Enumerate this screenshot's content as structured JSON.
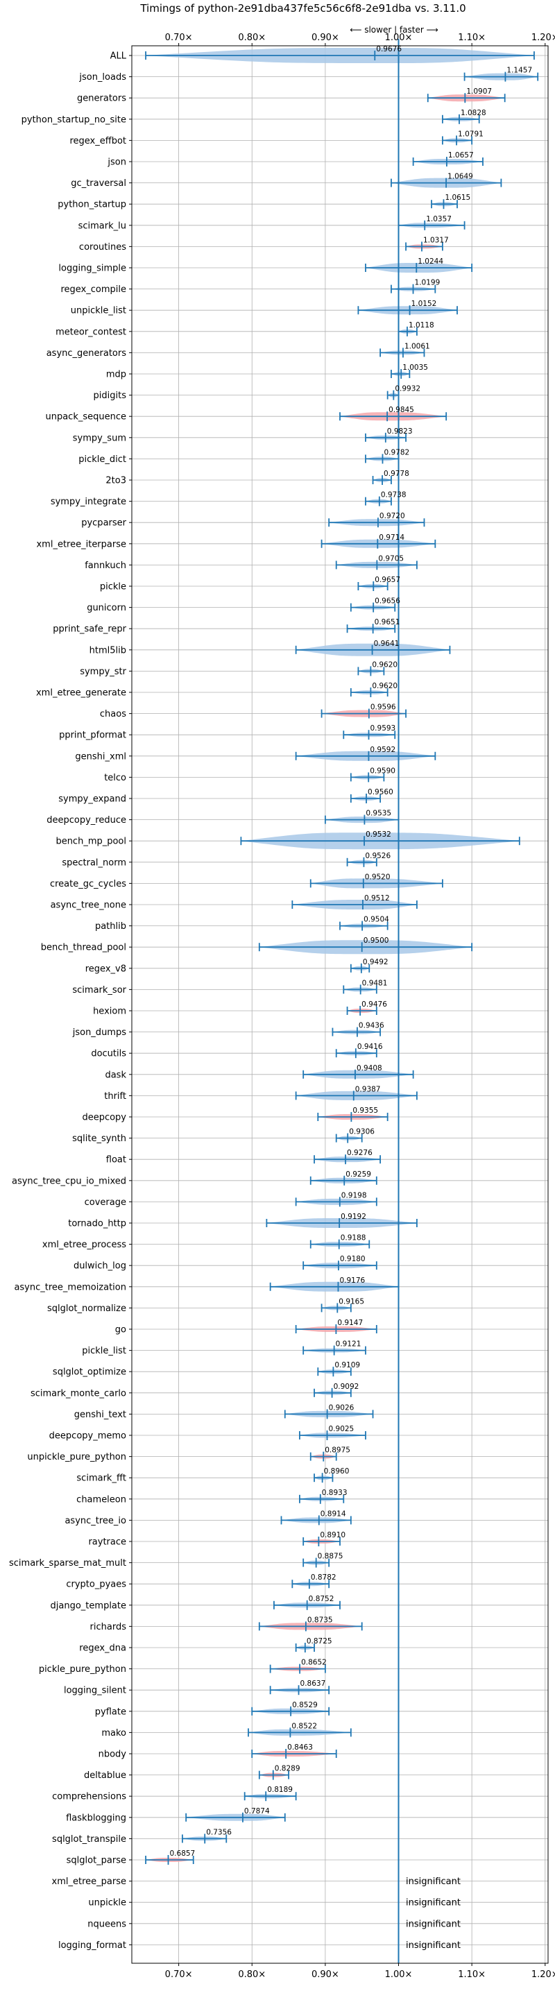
{
  "chart_data": {
    "type": "violin",
    "title": "Timings of python-2e91dba437fe5c56c6f8-2e91dba vs. 3.11.0",
    "direction_label": "⟵ slower | faster ⟶",
    "xlim": [
      0.636,
      1.204
    ],
    "x_ticks": [
      {
        "value": 0.7,
        "label": "0.70×"
      },
      {
        "value": 0.8,
        "label": "0.80×"
      },
      {
        "value": 0.9,
        "label": "0.90×"
      },
      {
        "value": 1.0,
        "label": "1.00×"
      },
      {
        "value": 1.1,
        "label": "1.10×"
      },
      {
        "value": 1.2,
        "label": "1.20×"
      }
    ],
    "grid": true,
    "colors": {
      "normal": "#a8c8e8",
      "slow": "#f4a6aa",
      "line": "#1f77b4",
      "grid": "#b0b0b0"
    },
    "insignificant_label": "insignificant",
    "benchmarks": [
      {
        "name": "ALL",
        "value": 0.9676,
        "label": "0.9676",
        "min": 0.655,
        "max": 1.185,
        "width": 0.11,
        "color": "normal"
      },
      {
        "name": "json_loads",
        "value": 1.1457,
        "label": "1.1457",
        "min": 1.09,
        "max": 1.19,
        "width": 0.05,
        "color": "normal"
      },
      {
        "name": "generators",
        "value": 1.0907,
        "label": "1.0907",
        "min": 1.04,
        "max": 1.145,
        "width": 0.05,
        "color": "slow"
      },
      {
        "name": "python_startup_no_site",
        "value": 1.0828,
        "label": "1.0828",
        "min": 1.06,
        "max": 1.11,
        "width": 0.025,
        "color": "normal"
      },
      {
        "name": "regex_effbot",
        "value": 1.0791,
        "label": "1.0791",
        "min": 1.06,
        "max": 1.1,
        "width": 0.02,
        "color": "normal"
      },
      {
        "name": "json",
        "value": 1.0657,
        "label": "1.0657",
        "min": 1.02,
        "max": 1.115,
        "width": 0.04,
        "color": "normal"
      },
      {
        "name": "gc_traversal",
        "value": 1.0649,
        "label": "1.0649",
        "min": 0.99,
        "max": 1.14,
        "width": 0.07,
        "color": "normal"
      },
      {
        "name": "python_startup",
        "value": 1.0615,
        "label": "1.0615",
        "min": 1.045,
        "max": 1.08,
        "width": 0.02,
        "color": "normal"
      },
      {
        "name": "scimark_lu",
        "value": 1.0357,
        "label": "1.0357",
        "min": 1.0,
        "max": 1.09,
        "width": 0.035,
        "color": "normal"
      },
      {
        "name": "coroutines",
        "value": 1.0317,
        "label": "1.0317",
        "min": 1.01,
        "max": 1.06,
        "width": 0.025,
        "color": "slow"
      },
      {
        "name": "logging_simple",
        "value": 1.0244,
        "label": "1.0244",
        "min": 0.955,
        "max": 1.1,
        "width": 0.07,
        "color": "normal"
      },
      {
        "name": "regex_compile",
        "value": 1.0199,
        "label": "1.0199",
        "min": 0.99,
        "max": 1.05,
        "width": 0.03,
        "color": "normal"
      },
      {
        "name": "unpickle_list",
        "value": 1.0152,
        "label": "1.0152",
        "min": 0.945,
        "max": 1.08,
        "width": 0.06,
        "color": "normal"
      },
      {
        "name": "meteor_contest",
        "value": 1.0118,
        "label": "1.0118",
        "min": 1.0,
        "max": 1.025,
        "width": 0.015,
        "color": "normal"
      },
      {
        "name": "async_generators",
        "value": 1.0061,
        "label": "1.0061",
        "min": 0.975,
        "max": 1.035,
        "width": 0.03,
        "color": "normal"
      },
      {
        "name": "mdp",
        "value": 1.0035,
        "label": "1.0035",
        "min": 0.99,
        "max": 1.015,
        "width": 0.015,
        "color": "normal"
      },
      {
        "name": "pidigits",
        "value": 0.9932,
        "label": "0.9932",
        "min": 0.985,
        "max": 1.0,
        "width": 0.012,
        "color": "normal"
      },
      {
        "name": "unpack_sequence",
        "value": 0.9845,
        "label": "0.9845",
        "min": 0.92,
        "max": 1.065,
        "width": 0.06,
        "color": "slow"
      },
      {
        "name": "sympy_sum",
        "value": 0.9823,
        "label": "0.9823",
        "min": 0.955,
        "max": 1.01,
        "width": 0.03,
        "color": "normal"
      },
      {
        "name": "pickle_dict",
        "value": 0.9782,
        "label": "0.9782",
        "min": 0.955,
        "max": 1.0,
        "width": 0.025,
        "color": "normal"
      },
      {
        "name": "2to3",
        "value": 0.9778,
        "label": "0.9778",
        "min": 0.965,
        "max": 0.99,
        "width": 0.015,
        "color": "normal"
      },
      {
        "name": "sympy_integrate",
        "value": 0.9738,
        "label": "0.9738",
        "min": 0.955,
        "max": 0.99,
        "width": 0.02,
        "color": "normal"
      },
      {
        "name": "pycparser",
        "value": 0.972,
        "label": "0.9720",
        "min": 0.905,
        "max": 1.035,
        "width": 0.05,
        "color": "normal"
      },
      {
        "name": "xml_etree_iterparse",
        "value": 0.9714,
        "label": "0.9714",
        "min": 0.895,
        "max": 1.05,
        "width": 0.06,
        "color": "normal"
      },
      {
        "name": "fannkuch",
        "value": 0.9705,
        "label": "0.9705",
        "min": 0.915,
        "max": 1.025,
        "width": 0.045,
        "color": "normal"
      },
      {
        "name": "pickle",
        "value": 0.9657,
        "label": "0.9657",
        "min": 0.945,
        "max": 0.985,
        "width": 0.02,
        "color": "normal"
      },
      {
        "name": "gunicorn",
        "value": 0.9656,
        "label": "0.9656",
        "min": 0.935,
        "max": 0.995,
        "width": 0.025,
        "color": "normal"
      },
      {
        "name": "pprint_safe_repr",
        "value": 0.9651,
        "label": "0.9651",
        "min": 0.93,
        "max": 0.995,
        "width": 0.03,
        "color": "normal"
      },
      {
        "name": "html5lib",
        "value": 0.9641,
        "label": "0.9641",
        "min": 0.86,
        "max": 1.07,
        "width": 0.09,
        "color": "normal"
      },
      {
        "name": "sympy_str",
        "value": 0.962,
        "label": "0.9620",
        "min": 0.945,
        "max": 0.98,
        "width": 0.02,
        "color": "normal"
      },
      {
        "name": "xml_etree_generate",
        "value": 0.962,
        "label": "0.9620",
        "min": 0.935,
        "max": 0.985,
        "width": 0.02,
        "color": "normal"
      },
      {
        "name": "chaos",
        "value": 0.9596,
        "label": "0.9596",
        "min": 0.895,
        "max": 1.01,
        "width": 0.05,
        "color": "slow"
      },
      {
        "name": "pprint_pformat",
        "value": 0.9593,
        "label": "0.9593",
        "min": 0.925,
        "max": 0.995,
        "width": 0.03,
        "color": "normal"
      },
      {
        "name": "genshi_xml",
        "value": 0.9592,
        "label": "0.9592",
        "min": 0.86,
        "max": 1.05,
        "width": 0.07,
        "color": "normal"
      },
      {
        "name": "telco",
        "value": 0.959,
        "label": "0.9590",
        "min": 0.935,
        "max": 0.98,
        "width": 0.02,
        "color": "normal"
      },
      {
        "name": "sympy_expand",
        "value": 0.956,
        "label": "0.9560",
        "min": 0.935,
        "max": 0.975,
        "width": 0.02,
        "color": "normal"
      },
      {
        "name": "deepcopy_reduce",
        "value": 0.9535,
        "label": "0.9535",
        "min": 0.9,
        "max": 1.0,
        "width": 0.045,
        "color": "normal"
      },
      {
        "name": "bench_mp_pool",
        "value": 0.9532,
        "label": "0.9532",
        "min": 0.785,
        "max": 1.165,
        "width": 0.12,
        "color": "normal"
      },
      {
        "name": "spectral_norm",
        "value": 0.9526,
        "label": "0.9526",
        "min": 0.93,
        "max": 0.97,
        "width": 0.02,
        "color": "normal"
      },
      {
        "name": "create_gc_cycles",
        "value": 0.952,
        "label": "0.9520",
        "min": 0.88,
        "max": 1.06,
        "width": 0.07,
        "color": "normal"
      },
      {
        "name": "async_tree_none",
        "value": 0.9512,
        "label": "0.9512",
        "min": 0.855,
        "max": 1.025,
        "width": 0.07,
        "color": "normal"
      },
      {
        "name": "pathlib",
        "value": 0.9504,
        "label": "0.9504",
        "min": 0.92,
        "max": 0.985,
        "width": 0.03,
        "color": "normal"
      },
      {
        "name": "bench_thread_pool",
        "value": 0.95,
        "label": "0.9500",
        "min": 0.81,
        "max": 1.1,
        "width": 0.1,
        "color": "normal"
      },
      {
        "name": "regex_v8",
        "value": 0.9492,
        "label": "0.9492",
        "min": 0.935,
        "max": 0.96,
        "width": 0.015,
        "color": "normal"
      },
      {
        "name": "scimark_sor",
        "value": 0.9481,
        "label": "0.9481",
        "min": 0.925,
        "max": 0.97,
        "width": 0.025,
        "color": "normal"
      },
      {
        "name": "hexiom",
        "value": 0.9476,
        "label": "0.9476",
        "min": 0.93,
        "max": 0.97,
        "width": 0.02,
        "color": "slow"
      },
      {
        "name": "json_dumps",
        "value": 0.9436,
        "label": "0.9436",
        "min": 0.91,
        "max": 0.975,
        "width": 0.03,
        "color": "normal"
      },
      {
        "name": "docutils",
        "value": 0.9416,
        "label": "0.9416",
        "min": 0.915,
        "max": 0.97,
        "width": 0.025,
        "color": "normal"
      },
      {
        "name": "dask",
        "value": 0.9408,
        "label": "0.9408",
        "min": 0.87,
        "max": 1.02,
        "width": 0.06,
        "color": "normal"
      },
      {
        "name": "thrift",
        "value": 0.9387,
        "label": "0.9387",
        "min": 0.86,
        "max": 1.025,
        "width": 0.065,
        "color": "normal"
      },
      {
        "name": "deepcopy",
        "value": 0.9355,
        "label": "0.9355",
        "min": 0.89,
        "max": 0.985,
        "width": 0.04,
        "color": "slow"
      },
      {
        "name": "sqlite_synth",
        "value": 0.9306,
        "label": "0.9306",
        "min": 0.915,
        "max": 0.95,
        "width": 0.02,
        "color": "normal"
      },
      {
        "name": "float",
        "value": 0.9276,
        "label": "0.9276",
        "min": 0.885,
        "max": 0.975,
        "width": 0.04,
        "color": "normal"
      },
      {
        "name": "async_tree_cpu_io_mixed",
        "value": 0.9259,
        "label": "0.9259",
        "min": 0.88,
        "max": 0.97,
        "width": 0.04,
        "color": "normal"
      },
      {
        "name": "coverage",
        "value": 0.9198,
        "label": "0.9198",
        "min": 0.86,
        "max": 0.97,
        "width": 0.045,
        "color": "normal"
      },
      {
        "name": "tornado_http",
        "value": 0.9192,
        "label": "0.9192",
        "min": 0.82,
        "max": 1.025,
        "width": 0.07,
        "color": "normal"
      },
      {
        "name": "xml_etree_process",
        "value": 0.9188,
        "label": "0.9188",
        "min": 0.88,
        "max": 0.96,
        "width": 0.035,
        "color": "normal"
      },
      {
        "name": "dulwich_log",
        "value": 0.918,
        "label": "0.9180",
        "min": 0.87,
        "max": 0.97,
        "width": 0.04,
        "color": "normal"
      },
      {
        "name": "async_tree_memoization",
        "value": 0.9176,
        "label": "0.9176",
        "min": 0.825,
        "max": 1.0,
        "width": 0.07,
        "color": "normal"
      },
      {
        "name": "sqlglot_normalize",
        "value": 0.9165,
        "label": "0.9165",
        "min": 0.895,
        "max": 0.935,
        "width": 0.02,
        "color": "normal"
      },
      {
        "name": "go",
        "value": 0.9147,
        "label": "0.9147",
        "min": 0.86,
        "max": 0.97,
        "width": 0.04,
        "color": "slow"
      },
      {
        "name": "pickle_list",
        "value": 0.9121,
        "label": "0.9121",
        "min": 0.87,
        "max": 0.955,
        "width": 0.03,
        "color": "normal"
      },
      {
        "name": "sqlglot_optimize",
        "value": 0.9109,
        "label": "0.9109",
        "min": 0.89,
        "max": 0.935,
        "width": 0.02,
        "color": "normal"
      },
      {
        "name": "scimark_monte_carlo",
        "value": 0.9092,
        "label": "0.9092",
        "min": 0.885,
        "max": 0.935,
        "width": 0.02,
        "color": "normal"
      },
      {
        "name": "genshi_text",
        "value": 0.9026,
        "label": "0.9026",
        "min": 0.845,
        "max": 0.965,
        "width": 0.045,
        "color": "normal"
      },
      {
        "name": "deepcopy_memo",
        "value": 0.9025,
        "label": "0.9025",
        "min": 0.865,
        "max": 0.955,
        "width": 0.035,
        "color": "normal"
      },
      {
        "name": "unpickle_pure_python",
        "value": 0.8975,
        "label": "0.8975",
        "min": 0.88,
        "max": 0.915,
        "width": 0.02,
        "color": "slow"
      },
      {
        "name": "scimark_fft",
        "value": 0.896,
        "label": "0.8960",
        "min": 0.885,
        "max": 0.91,
        "width": 0.015,
        "color": "normal"
      },
      {
        "name": "chameleon",
        "value": 0.8933,
        "label": "0.8933",
        "min": 0.865,
        "max": 0.925,
        "width": 0.025,
        "color": "normal"
      },
      {
        "name": "async_tree_io",
        "value": 0.8914,
        "label": "0.8914",
        "min": 0.84,
        "max": 0.935,
        "width": 0.04,
        "color": "normal"
      },
      {
        "name": "raytrace",
        "value": 0.891,
        "label": "0.8910",
        "min": 0.87,
        "max": 0.92,
        "width": 0.025,
        "color": "slow"
      },
      {
        "name": "scimark_sparse_mat_mult",
        "value": 0.8875,
        "label": "0.8875",
        "min": 0.87,
        "max": 0.905,
        "width": 0.015,
        "color": "normal"
      },
      {
        "name": "crypto_pyaes",
        "value": 0.8782,
        "label": "0.8782",
        "min": 0.855,
        "max": 0.905,
        "width": 0.02,
        "color": "normal"
      },
      {
        "name": "django_template",
        "value": 0.8752,
        "label": "0.8752",
        "min": 0.83,
        "max": 0.92,
        "width": 0.035,
        "color": "normal"
      },
      {
        "name": "richards",
        "value": 0.8735,
        "label": "0.8735",
        "min": 0.81,
        "max": 0.95,
        "width": 0.05,
        "color": "slow"
      },
      {
        "name": "regex_dna",
        "value": 0.8725,
        "label": "0.8725",
        "min": 0.86,
        "max": 0.885,
        "width": 0.012,
        "color": "normal"
      },
      {
        "name": "pickle_pure_python",
        "value": 0.8652,
        "label": "0.8652",
        "min": 0.825,
        "max": 0.9,
        "width": 0.03,
        "color": "slow"
      },
      {
        "name": "logging_silent",
        "value": 0.8637,
        "label": "0.8637",
        "min": 0.825,
        "max": 0.905,
        "width": 0.03,
        "color": "normal"
      },
      {
        "name": "pyflate",
        "value": 0.8529,
        "label": "0.8529",
        "min": 0.8,
        "max": 0.905,
        "width": 0.04,
        "color": "normal"
      },
      {
        "name": "mako",
        "value": 0.8522,
        "label": "0.8522",
        "min": 0.795,
        "max": 0.935,
        "width": 0.045,
        "color": "normal"
      },
      {
        "name": "nbody",
        "value": 0.8463,
        "label": "0.8463",
        "min": 0.8,
        "max": 0.915,
        "width": 0.04,
        "color": "slow"
      },
      {
        "name": "deltablue",
        "value": 0.8289,
        "label": "0.8289",
        "min": 0.81,
        "max": 0.85,
        "width": 0.02,
        "color": "slow"
      },
      {
        "name": "comprehensions",
        "value": 0.8189,
        "label": "0.8189",
        "min": 0.79,
        "max": 0.86,
        "width": 0.03,
        "color": "normal"
      },
      {
        "name": "flaskblogging",
        "value": 0.7874,
        "label": "0.7874",
        "min": 0.71,
        "max": 0.845,
        "width": 0.05,
        "color": "normal"
      },
      {
        "name": "sqlglot_transpile",
        "value": 0.7356,
        "label": "0.7356",
        "min": 0.705,
        "max": 0.765,
        "width": 0.03,
        "color": "normal"
      },
      {
        "name": "sqlglot_parse",
        "value": 0.6857,
        "label": "0.6857",
        "min": 0.655,
        "max": 0.72,
        "width": 0.03,
        "color": "slow"
      },
      {
        "name": "xml_etree_parse",
        "value": null,
        "label": "",
        "insignificant": true
      },
      {
        "name": "unpickle",
        "value": null,
        "label": "",
        "insignificant": true
      },
      {
        "name": "nqueens",
        "value": null,
        "label": "",
        "insignificant": true
      },
      {
        "name": "logging_format",
        "value": null,
        "label": "",
        "insignificant": true
      }
    ]
  }
}
